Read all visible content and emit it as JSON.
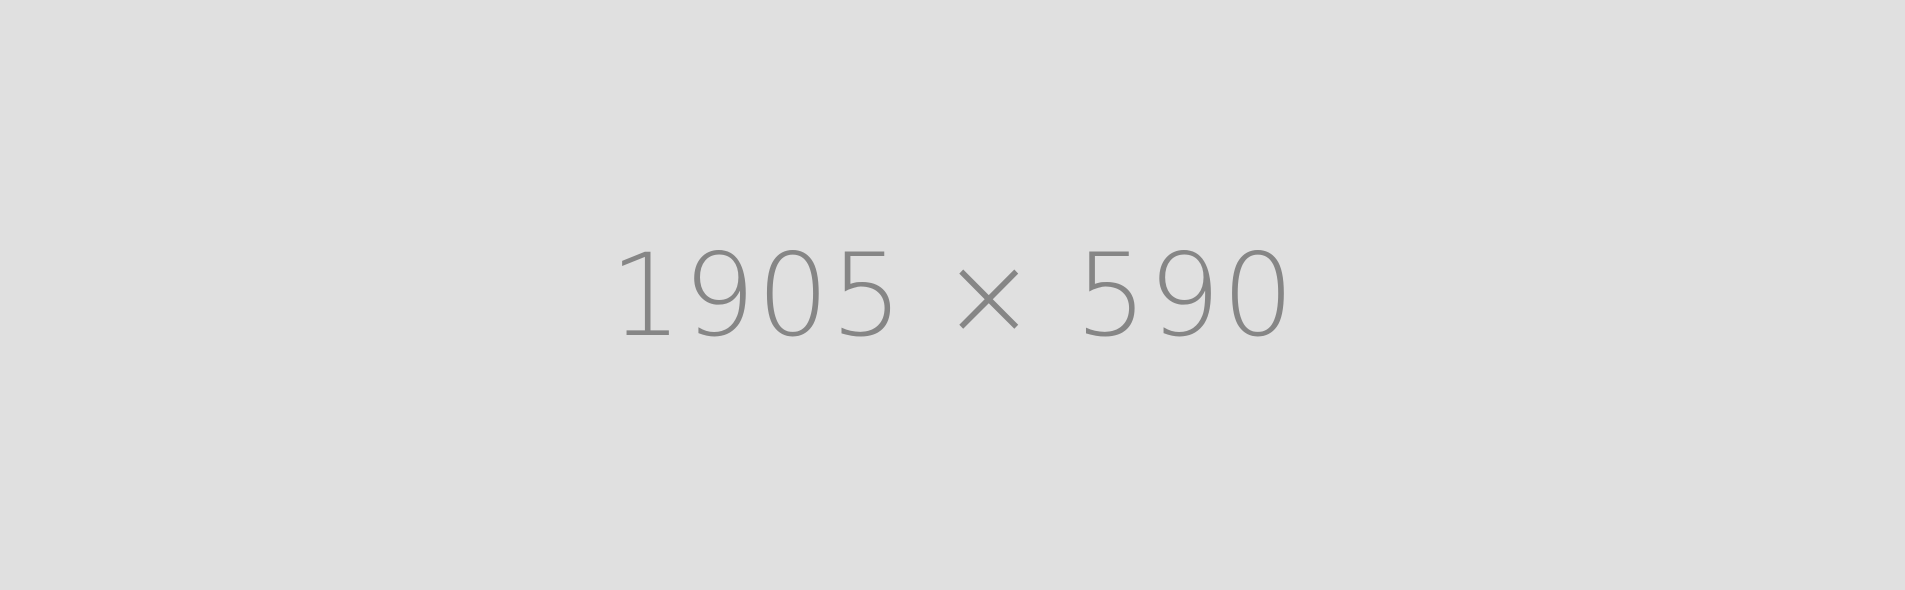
{
  "placeholder": {
    "text": "1905 × 590",
    "colors": {
      "background": "#e0e0e0",
      "text": "#868686"
    }
  }
}
